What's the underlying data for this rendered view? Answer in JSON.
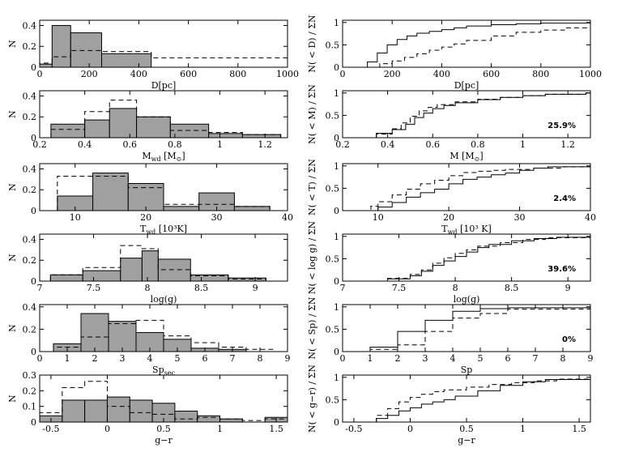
{
  "style": {
    "bar_fill": "#a0a0a0",
    "line": "#000000"
  },
  "chart_data": [
    {
      "id": "hist-D",
      "type": "bar",
      "xlabel": "D[pc]",
      "ylabel": "N",
      "xlim": [
        0,
        1000
      ],
      "ylim": [
        0,
        0.45
      ],
      "xticks": [
        0,
        200,
        400,
        600,
        800,
        1000
      ],
      "xtick_labels": [
        "0",
        "200",
        "400",
        "600",
        "800",
        "1000"
      ],
      "yticks": [
        0,
        0.2,
        0.4
      ],
      "ytick_labels": [
        "0",
        "0.2",
        "0.4"
      ],
      "bin_edges": [
        0,
        50,
        125,
        250,
        450,
        1000
      ],
      "series": [
        {
          "style": "filled",
          "values": [
            0.03,
            0.4,
            0.33,
            0.13,
            0.0
          ]
        },
        {
          "style": "dashed",
          "values": [
            0.04,
            0.1,
            0.16,
            0.15,
            0.09
          ]
        }
      ]
    },
    {
      "id": "cdf-D",
      "type": "line",
      "xlabel": "D[pc]",
      "ylabel": "N( < D) / ΣN",
      "xlim": [
        0,
        1000
      ],
      "ylim": [
        0,
        1.05
      ],
      "xticks": [
        0,
        200,
        400,
        600,
        800,
        1000
      ],
      "xtick_labels": [
        "0",
        "200",
        "400",
        "600",
        "800",
        "1000"
      ],
      "yticks": [
        0,
        0.5,
        1
      ],
      "ytick_labels": [
        "0",
        "0.5",
        "1"
      ],
      "annotation": "",
      "series": [
        {
          "style": "solid",
          "x": [
            60,
            100,
            140,
            180,
            220,
            260,
            300,
            350,
            400,
            450,
            500,
            600,
            700,
            800,
            1000
          ],
          "y": [
            0,
            0.12,
            0.32,
            0.5,
            0.62,
            0.7,
            0.76,
            0.8,
            0.84,
            0.88,
            0.92,
            0.95,
            0.97,
            0.99,
            1.0
          ]
        },
        {
          "style": "dashed",
          "x": [
            80,
            150,
            200,
            250,
            300,
            350,
            400,
            450,
            500,
            600,
            700,
            800,
            900,
            1000
          ],
          "y": [
            0,
            0.08,
            0.14,
            0.22,
            0.3,
            0.38,
            0.45,
            0.52,
            0.6,
            0.7,
            0.78,
            0.83,
            0.88,
            0.9
          ]
        }
      ]
    },
    {
      "id": "hist-M",
      "type": "bar",
      "xlabel": "M_wd [M_⊙]",
      "ylabel": "N",
      "xlim": [
        0.2,
        1.3
      ],
      "ylim": [
        0,
        0.45
      ],
      "xticks": [
        0.2,
        0.4,
        0.6,
        0.8,
        1.0,
        1.2
      ],
      "xtick_labels": [
        "0.2",
        "0.4",
        "0.6",
        "0.8",
        "1",
        "1.2"
      ],
      "yticks": [
        0,
        0.2,
        0.4
      ],
      "ytick_labels": [
        "0",
        "0.2",
        "0.4"
      ],
      "bin_edges": [
        0.25,
        0.4,
        0.51,
        0.63,
        0.78,
        0.95,
        1.1,
        1.27
      ],
      "series": [
        {
          "style": "filled",
          "values": [
            0.13,
            0.17,
            0.28,
            0.2,
            0.13,
            0.04,
            0.03
          ]
        },
        {
          "style": "dashed",
          "values": [
            0.08,
            0.25,
            0.36,
            0.2,
            0.07,
            0.05,
            0.03
          ]
        }
      ]
    },
    {
      "id": "cdf-M",
      "type": "line",
      "xlabel": "M [M_⊙]",
      "ylabel": "N( < M) / ΣN",
      "xlim": [
        0.2,
        1.3
      ],
      "ylim": [
        0,
        1.05
      ],
      "xticks": [
        0.2,
        0.4,
        0.6,
        0.8,
        1.0,
        1.2
      ],
      "xtick_labels": [
        "0.2",
        "0.4",
        "0.6",
        "0.8",
        "1",
        "1.2"
      ],
      "yticks": [
        0,
        0.5,
        1
      ],
      "ytick_labels": [
        "0",
        "0.5",
        "1"
      ],
      "annotation": "25.9%",
      "series": [
        {
          "style": "solid",
          "x": [
            0.26,
            0.35,
            0.42,
            0.48,
            0.52,
            0.56,
            0.6,
            0.65,
            0.7,
            0.8,
            0.9,
            1.0,
            1.1,
            1.28
          ],
          "y": [
            0,
            0.1,
            0.18,
            0.3,
            0.45,
            0.55,
            0.65,
            0.72,
            0.78,
            0.85,
            0.9,
            0.94,
            0.97,
            1.0
          ]
        },
        {
          "style": "dashed",
          "x": [
            0.28,
            0.35,
            0.42,
            0.46,
            0.5,
            0.54,
            0.58,
            0.62,
            0.7,
            0.8,
            0.9,
            1.0,
            1.1,
            1.28
          ],
          "y": [
            0,
            0.08,
            0.2,
            0.33,
            0.48,
            0.6,
            0.68,
            0.74,
            0.8,
            0.86,
            0.9,
            0.94,
            0.97,
            1.0
          ]
        }
      ]
    },
    {
      "id": "hist-T",
      "type": "bar",
      "xlabel": "T_wd [10³K]",
      "ylabel": "N",
      "xlim": [
        5,
        40
      ],
      "ylim": [
        0,
        0.45
      ],
      "xticks": [
        10,
        20,
        30,
        40
      ],
      "xtick_labels": [
        "10",
        "20",
        "30",
        "40"
      ],
      "yticks": [
        0,
        0.2,
        0.4
      ],
      "ytick_labels": [
        "0",
        "0.2",
        "0.4"
      ],
      "bin_edges": [
        7.5,
        12.5,
        17.5,
        22.5,
        27.5,
        32.5,
        37.5
      ],
      "series": [
        {
          "style": "filled",
          "values": [
            0.14,
            0.36,
            0.26,
            0.04,
            0.17,
            0.04
          ]
        },
        {
          "style": "dashed",
          "values": [
            0.33,
            0.33,
            0.22,
            0.06,
            0.06,
            0.04
          ]
        }
      ]
    },
    {
      "id": "cdf-T",
      "type": "line",
      "xlabel": "T_wd [10³ K]",
      "ylabel": "N( < T) / ΣN",
      "xlim": [
        5,
        40
      ],
      "ylim": [
        0,
        1.05
      ],
      "xticks": [
        10,
        20,
        30,
        40
      ],
      "xtick_labels": [
        "10",
        "20",
        "30",
        "40"
      ],
      "yticks": [
        0,
        0.5,
        1
      ],
      "ytick_labels": [
        "0",
        "0.5",
        "1"
      ],
      "annotation": "2.4%",
      "series": [
        {
          "style": "solid",
          "x": [
            8,
            10,
            12,
            14,
            16,
            18,
            20,
            22,
            24,
            26,
            28,
            30,
            32,
            34,
            40
          ],
          "y": [
            0,
            0.08,
            0.18,
            0.3,
            0.4,
            0.48,
            0.6,
            0.7,
            0.75,
            0.8,
            0.84,
            0.9,
            0.95,
            0.98,
            1.0
          ]
        },
        {
          "style": "dashed",
          "x": [
            8,
            9,
            10,
            12,
            14,
            16,
            18,
            20,
            22,
            24,
            26,
            28,
            32,
            36,
            40
          ],
          "y": [
            0,
            0.1,
            0.2,
            0.35,
            0.48,
            0.6,
            0.68,
            0.78,
            0.85,
            0.88,
            0.9,
            0.92,
            0.95,
            0.98,
            1.0
          ]
        }
      ]
    },
    {
      "id": "hist-logg",
      "type": "bar",
      "xlabel": "log(g)",
      "ylabel": "N",
      "xlim": [
        7,
        9.3
      ],
      "ylim": [
        0,
        0.45
      ],
      "xticks": [
        7,
        7.5,
        8,
        8.5,
        9
      ],
      "xtick_labels": [
        "7",
        "7.5",
        "8",
        "8.5",
        "9"
      ],
      "yticks": [
        0,
        0.2,
        0.4
      ],
      "ytick_labels": [
        "0",
        "0.2",
        "0.4"
      ],
      "bin_edges": [
        7.1,
        7.4,
        7.75,
        7.95,
        8.1,
        8.4,
        8.75,
        9.1
      ],
      "series": [
        {
          "style": "filled",
          "values": [
            0.06,
            0.1,
            0.22,
            0.29,
            0.21,
            0.06,
            0.03
          ]
        },
        {
          "style": "dashed",
          "values": [
            0.06,
            0.13,
            0.34,
            0.31,
            0.11,
            0.05,
            0.02
          ]
        }
      ]
    },
    {
      "id": "cdf-logg",
      "type": "line",
      "xlabel": "log(g)",
      "ylabel": "N( < log g) / ΣN",
      "xlim": [
        7,
        9.2
      ],
      "ylim": [
        0,
        1.05
      ],
      "xticks": [
        7,
        7.5,
        8,
        8.5,
        9
      ],
      "xtick_labels": [
        "7",
        "7.5",
        "8",
        "8.5",
        "9"
      ],
      "yticks": [
        0,
        0.5,
        1
      ],
      "ytick_labels": [
        "0",
        "0.5",
        "1"
      ],
      "annotation": "39.6%",
      "series": [
        {
          "style": "solid",
          "x": [
            7.2,
            7.4,
            7.6,
            7.7,
            7.8,
            7.9,
            8.0,
            8.1,
            8.2,
            8.3,
            8.5,
            8.7,
            8.9,
            9.2
          ],
          "y": [
            0,
            0.05,
            0.12,
            0.22,
            0.35,
            0.45,
            0.55,
            0.65,
            0.75,
            0.82,
            0.9,
            0.95,
            0.98,
            1.0
          ]
        },
        {
          "style": "dashed",
          "x": [
            7.2,
            7.4,
            7.6,
            7.7,
            7.8,
            7.9,
            8.0,
            8.1,
            8.2,
            8.4,
            8.6,
            8.8,
            9.2
          ],
          "y": [
            0,
            0.06,
            0.15,
            0.25,
            0.4,
            0.52,
            0.62,
            0.7,
            0.78,
            0.86,
            0.93,
            0.97,
            1.0
          ]
        }
      ]
    },
    {
      "id": "hist-Sp",
      "type": "bar",
      "xlabel": "Sp_sec",
      "ylabel": "N",
      "xlim": [
        0,
        9
      ],
      "ylim": [
        0,
        0.42
      ],
      "xticks": [
        0,
        1,
        2,
        3,
        4,
        5,
        6,
        7,
        8,
        9
      ],
      "xtick_labels": [
        "0",
        "1",
        "2",
        "3",
        "4",
        "5",
        "6",
        "7",
        "8",
        "9"
      ],
      "yticks": [
        0,
        0.2,
        0.4
      ],
      "ytick_labels": [
        "0",
        "0.2",
        "0.4"
      ],
      "bin_edges": [
        0.5,
        1.5,
        2.5,
        3.5,
        4.5,
        5.5,
        6.5,
        7.5,
        8.5
      ],
      "series": [
        {
          "style": "filled",
          "values": [
            0.07,
            0.34,
            0.27,
            0.17,
            0.11,
            0.03,
            0.02,
            0.0
          ]
        },
        {
          "style": "dashed",
          "values": [
            0.04,
            0.13,
            0.25,
            0.28,
            0.14,
            0.08,
            0.04,
            0.02
          ]
        }
      ]
    },
    {
      "id": "cdf-Sp",
      "type": "line",
      "xlabel": "Sp",
      "ylabel": "N( < Sp) / ΣN",
      "xlim": [
        0,
        9
      ],
      "ylim": [
        0,
        1.05
      ],
      "xticks": [
        0,
        1,
        2,
        3,
        4,
        5,
        6,
        7,
        8,
        9
      ],
      "xtick_labels": [
        "0",
        "1",
        "2",
        "3",
        "4",
        "5",
        "6",
        "7",
        "8",
        "9"
      ],
      "yticks": [
        0,
        0.5,
        1
      ],
      "ytick_labels": [
        "0",
        "0.5",
        "1"
      ],
      "annotation": "0%",
      "series": [
        {
          "style": "solid",
          "x": [
            1,
            2,
            3,
            4,
            5,
            6,
            9
          ],
          "y": [
            0.1,
            0.45,
            0.7,
            0.9,
            0.96,
            0.98,
            1.0
          ]
        },
        {
          "style": "dashed",
          "x": [
            1,
            2,
            3,
            4,
            5,
            6,
            9
          ],
          "y": [
            0.05,
            0.15,
            0.45,
            0.75,
            0.85,
            0.95,
            1.0
          ]
        }
      ]
    },
    {
      "id": "hist-gr",
      "type": "bar",
      "xlabel": "g−r",
      "ylabel": "N",
      "xlim": [
        -0.6,
        1.6
      ],
      "ylim": [
        0,
        0.3
      ],
      "xticks": [
        -0.5,
        0,
        0.5,
        1,
        1.5
      ],
      "xtick_labels": [
        "-0.5",
        "0",
        "0.5",
        "1",
        "1.5"
      ],
      "yticks": [
        0,
        0.1,
        0.2,
        0.3
      ],
      "ytick_labels": [
        "0",
        "0.1",
        "0.2",
        "0.3"
      ],
      "bin_edges": [
        -0.6,
        -0.4,
        -0.2,
        0,
        0.2,
        0.4,
        0.6,
        0.8,
        1.0,
        1.2,
        1.4,
        1.6
      ],
      "series": [
        {
          "style": "filled",
          "values": [
            0.04,
            0.14,
            0.14,
            0.16,
            0.14,
            0.12,
            0.07,
            0.04,
            0.02,
            0.0,
            0.03
          ]
        },
        {
          "style": "dashed",
          "values": [
            0.06,
            0.22,
            0.26,
            0.1,
            0.06,
            0.05,
            0.02,
            0.03,
            0.02,
            0.01,
            0.02
          ]
        }
      ]
    },
    {
      "id": "cdf-gr",
      "type": "line",
      "xlabel": "g−r",
      "ylabel": "N( < g−r) / ΣN",
      "xlim": [
        -0.6,
        1.6
      ],
      "ylim": [
        0,
        1.05
      ],
      "xticks": [
        -0.5,
        0,
        0.5,
        1,
        1.5
      ],
      "xtick_labels": [
        "-0.5",
        "0",
        "0.5",
        "1",
        "1.5"
      ],
      "yticks": [
        0,
        0.5,
        1
      ],
      "ytick_labels": [
        "0",
        "0.5",
        "1"
      ],
      "annotation": "",
      "series": [
        {
          "style": "solid",
          "x": [
            -0.4,
            -0.3,
            -0.2,
            -0.1,
            0,
            0.1,
            0.2,
            0.3,
            0.4,
            0.6,
            0.8,
            1.0,
            1.2,
            1.6
          ],
          "y": [
            0,
            0.08,
            0.15,
            0.25,
            0.32,
            0.4,
            0.45,
            0.5,
            0.58,
            0.7,
            0.82,
            0.9,
            0.95,
            1.0
          ]
        },
        {
          "style": "dashed",
          "x": [
            -0.45,
            -0.3,
            -0.2,
            -0.1,
            0,
            0.1,
            0.2,
            0.3,
            0.5,
            0.7,
            0.9,
            1.1,
            1.3,
            1.6
          ],
          "y": [
            0,
            0.15,
            0.3,
            0.45,
            0.55,
            0.62,
            0.68,
            0.72,
            0.78,
            0.84,
            0.88,
            0.92,
            0.96,
            1.0
          ]
        }
      ]
    }
  ]
}
